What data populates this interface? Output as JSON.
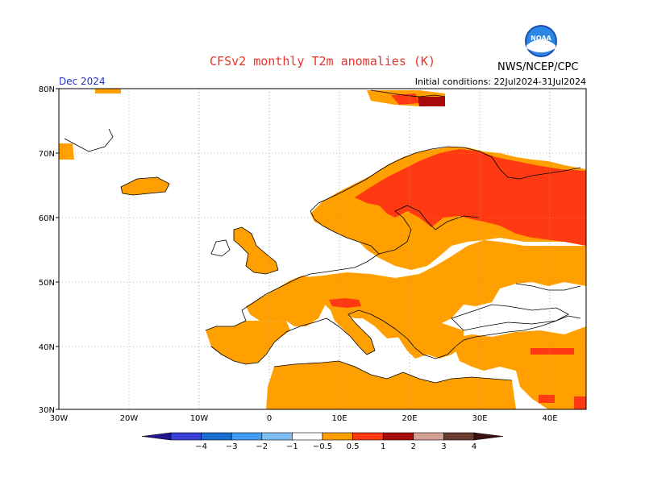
{
  "header": {
    "title": "CFSv2 monthly T2m anomalies (K)",
    "valid_label": "Dec 2024",
    "init_label": "Initial conditions: 22Jul2024-31Jul2024",
    "agency": "NWS/NCEP/CPC",
    "logo_text": "NOAA"
  },
  "map": {
    "region": "Europe",
    "lon_range": [
      -30,
      45
    ],
    "lat_range": [
      30,
      80
    ],
    "lat_labels": [
      "30N",
      "40N",
      "50N",
      "60N",
      "70N",
      "80N"
    ],
    "lon_labels": [
      "30W",
      "20W",
      "10W",
      "0",
      "10E",
      "20E",
      "30E",
      "40E"
    ],
    "grid": "dotted",
    "anomaly_regions": [
      {
        "name": "Iberia and western Mediterranean",
        "level": "0.5 to 1"
      },
      {
        "name": "France, Italy and central Europe",
        "level": "0.5 to 1"
      },
      {
        "name": "Fennoscandia north",
        "level": "1 to 2"
      },
      {
        "name": "Western Russia",
        "level": "1 to 2"
      },
      {
        "name": "Alps",
        "level": "1 to 2"
      },
      {
        "name": "Svalbard / Barents Sea",
        "level": "2 to 3"
      }
    ]
  },
  "colorbar": {
    "tick_labels": [
      "−4",
      "−3",
      "−2",
      "−1",
      "−0.5",
      "0.5",
      "1",
      "2",
      "3",
      "4"
    ],
    "colors": [
      "#24168f",
      "#3a3fd6",
      "#1a6dd1",
      "#3f9ef2",
      "#7fbdf5",
      "#ffffff",
      "#ffa000",
      "#ff3a12",
      "#a80a0a",
      "#d4a094",
      "#6b3d30",
      "#3a1212"
    ]
  }
}
